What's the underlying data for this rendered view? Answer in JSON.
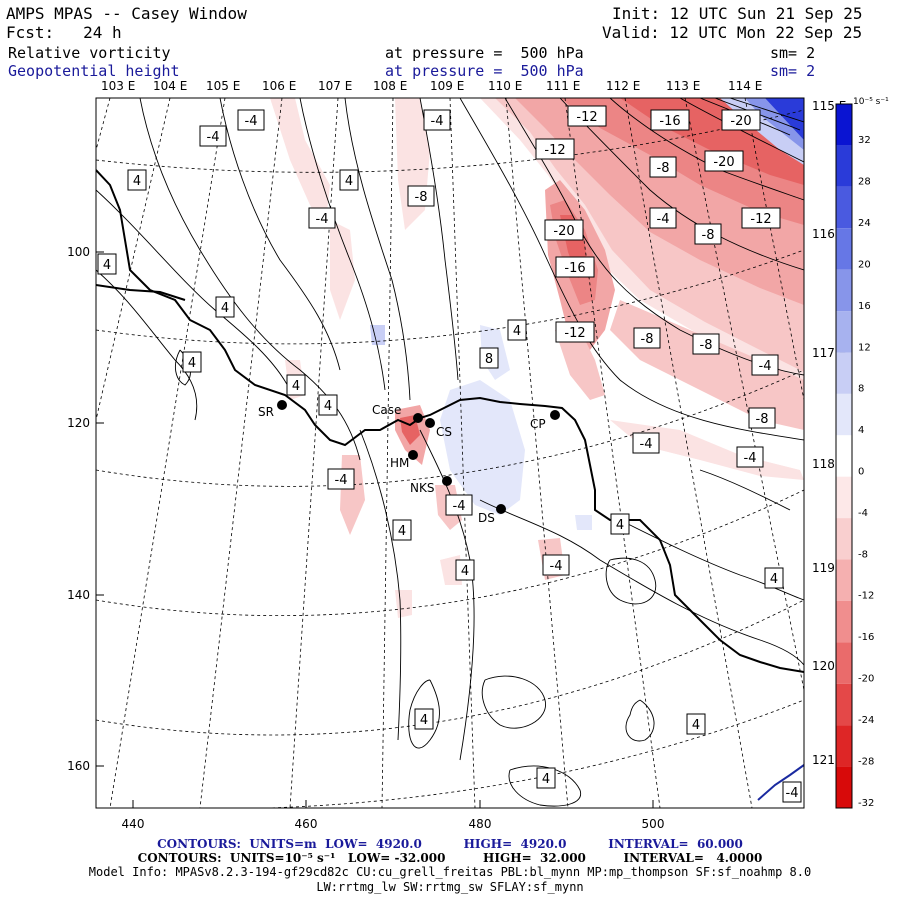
{
  "header": {
    "title": "AMPS MPAS -- Casey Window",
    "init": "Init: 12 UTC Sun 21 Sep 25",
    "fcst": "Fcst:   24 h",
    "valid": "Valid: 12 UTC Mon 22 Sep 25",
    "field1": "Relative vorticity",
    "field1_level": "at pressure =  500 hPa",
    "field1_sm": "sm= 2",
    "field2": "Geopotential height",
    "field2_level": "at pressure =  500 hPa",
    "field2_sm": "sm= 2"
  },
  "axes": {
    "top_lon_labels": [
      "103 E",
      "104 E",
      "105 E",
      "106 E",
      "107 E",
      "108 E",
      "109 E",
      "110 E",
      "111 E",
      "112 E",
      "113 E",
      "114 E"
    ],
    "right_lon_labels": [
      "115 E",
      "116 E",
      "117 E",
      "118 E",
      "119 E",
      "120 E",
      "121 E"
    ],
    "x_ticks": [
      "440",
      "460",
      "480",
      "500"
    ],
    "y_ticks": [
      "100",
      "120",
      "140",
      "160"
    ]
  },
  "stations": [
    {
      "label": "SR"
    },
    {
      "label": "Case"
    },
    {
      "label": "CS"
    },
    {
      "label": "HM"
    },
    {
      "label": "NKS"
    },
    {
      "label": "DS"
    },
    {
      "label": "CP"
    }
  ],
  "contour_labels": [
    "-4",
    "-4",
    "-4",
    "-4",
    "4",
    "4",
    "4",
    "4",
    "-8",
    "-4",
    "4",
    "4",
    "4",
    "-4",
    "4",
    "4",
    "-4",
    "4",
    "4",
    "4",
    "4",
    "4",
    "4",
    "-12",
    "-16",
    "-20",
    "-12",
    "-8",
    "-20",
    "-4",
    "-8",
    "-12",
    "-20",
    "-16",
    "-12",
    "-8",
    "-8",
    "-4",
    "-8",
    "-4",
    "-4",
    "8",
    "-4"
  ],
  "colorbar": {
    "units": "10⁻⁵ s⁻¹",
    "ticks": [
      "32",
      "28",
      "24",
      "20",
      "16",
      "12",
      "8",
      "4",
      "0",
      "-4",
      "-8",
      "-12",
      "-16",
      "-20",
      "-24",
      "-28",
      "-32"
    ],
    "colors": [
      "#0a14d2",
      "#2a3bd9",
      "#4a5ae0",
      "#6677e6",
      "#8795ea",
      "#a7b2ef",
      "#c8cef5",
      "#e3e7fa",
      "#ffffff",
      "#fde8e8",
      "#f9cfcf",
      "#f5b0b0",
      "#f08e8e",
      "#ea6b6b",
      "#e44848",
      "#de2626",
      "#d80a0a"
    ]
  },
  "footer": {
    "line1": "CONTOURS:  UNITS=m  LOW=  4920.0          HIGH=  4920.0          INTERVAL=  60.000",
    "line2": "CONTOURS:  UNITS=10⁻⁵ s⁻¹   LOW= -32.000         HIGH=  32.000         INTERVAL=   4.0000",
    "line3": "Model Info: MPASv8.2.3-194-gf29cd82c CU:cu_grell_freitas PBL:bl_mynn MP:mp_thompson SF:sf_noahmp 8.0",
    "line4": "LW:rrtmg_lw SW:rrtmg_sw SFLAY:sf_mynn"
  }
}
